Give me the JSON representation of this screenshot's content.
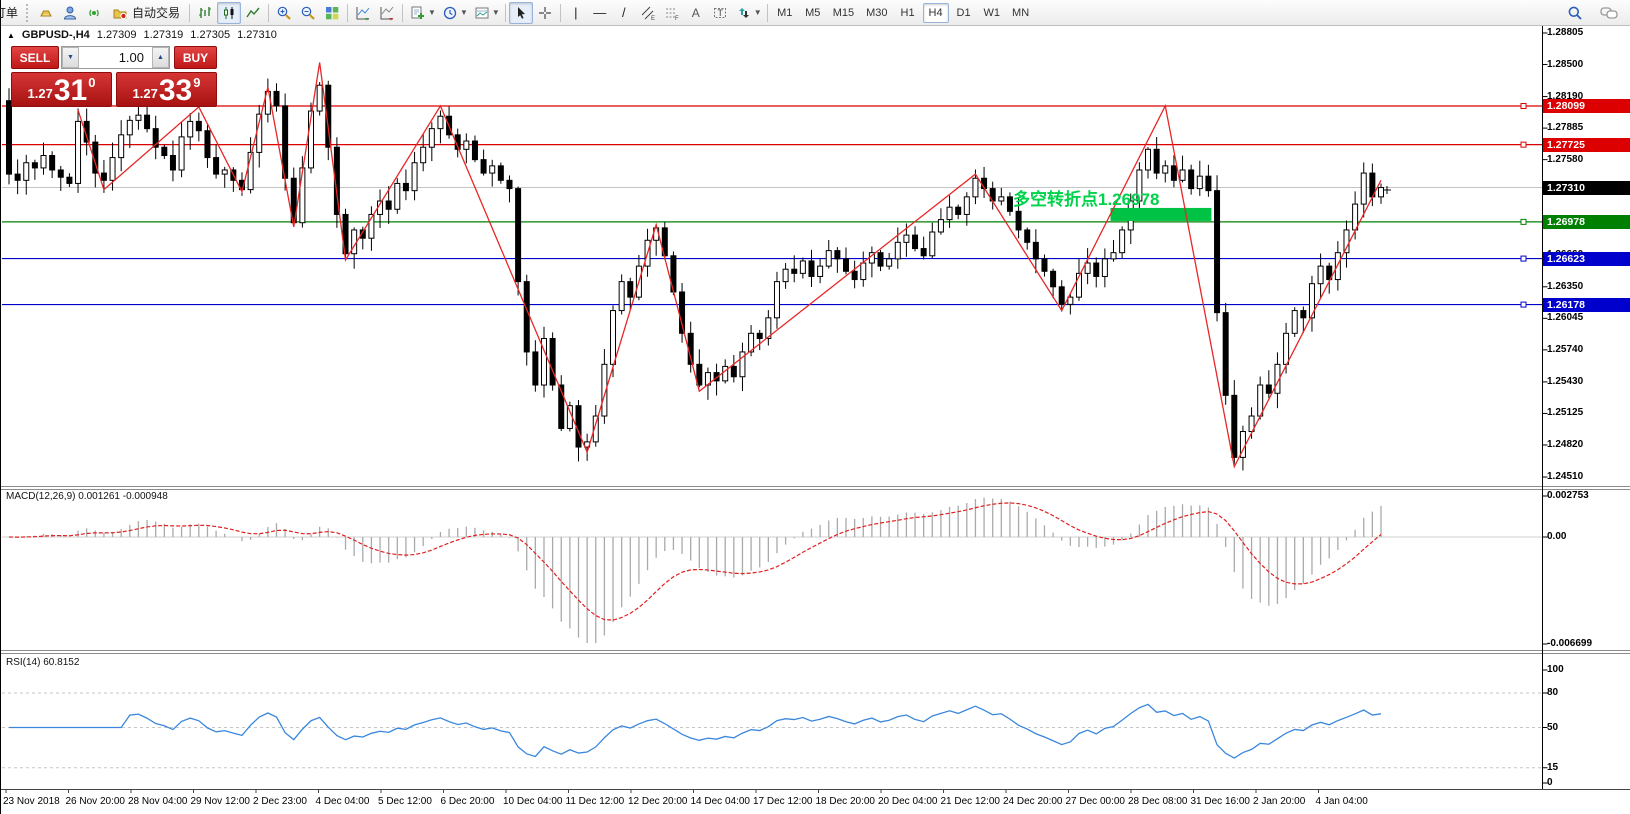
{
  "toolbar": {
    "order_label": "订单",
    "autotrade_label": "自动交易",
    "timeframes": [
      "M1",
      "M5",
      "M15",
      "M30",
      "H1",
      "H4",
      "D1",
      "W1",
      "MN"
    ],
    "active_timeframe": "H4"
  },
  "symbol_header": {
    "symbol": "GBPUSD-,H4",
    "open": "1.27309",
    "high": "1.27319",
    "low": "1.27305",
    "close": "1.27310"
  },
  "trade_panel": {
    "sell_label": "SELL",
    "buy_label": "BUY",
    "volume": "1.00",
    "sell_price_prefix": "1.27",
    "sell_price_big": "31",
    "sell_price_sup": "0",
    "buy_price_prefix": "1.27",
    "buy_price_big": "33",
    "buy_price_sup": "9"
  },
  "annotation": {
    "text": "多空转折点1.26978",
    "color": "#00d24b"
  },
  "highlight_bar": {
    "from_index": 128,
    "to_index": 139,
    "price": 1.2705,
    "color": "#00c244",
    "thickness": 13
  },
  "levels": [
    {
      "price": 1.28099,
      "color": "#dd0000"
    },
    {
      "price": 1.27725,
      "color": "#dd0000"
    },
    {
      "price": 1.26978,
      "color": "#008000"
    },
    {
      "price": 1.26623,
      "color": "#0000cc"
    },
    {
      "price": 1.26178,
      "color": "#0000cc"
    }
  ],
  "current_price": {
    "value": 1.2731,
    "text": "1.27310",
    "line_color": "#c4c4c4"
  },
  "price_axis": {
    "ticks": [
      "1.28805",
      "1.28500",
      "1.28190",
      "1.27885",
      "1.27580",
      "1.27270",
      "1.26965",
      "1.26660",
      "1.26350",
      "1.26045",
      "1.25740",
      "1.25430",
      "1.25125",
      "1.24820",
      "1.24510"
    ],
    "tags": [
      {
        "text": "1.28099",
        "price": 1.28099,
        "color": "#dd0000"
      },
      {
        "text": "1.27725",
        "price": 1.27725,
        "color": "#dd0000"
      },
      {
        "text": "1.27310",
        "price": 1.2731,
        "color": "#000000"
      },
      {
        "text": "1.26978",
        "price": 1.26978,
        "color": "#008000"
      },
      {
        "text": "1.26623",
        "price": 1.26623,
        "color": "#0000cc"
      },
      {
        "text": "1.26178",
        "price": 1.26178,
        "color": "#0000cc"
      }
    ]
  },
  "macd_panel": {
    "label": "MACD(12,26,9)",
    "value_main": "0.001261",
    "value_signal": "-0.000948",
    "axis": [
      "0.002753",
      "0.00",
      "-0.006699"
    ]
  },
  "rsi_panel": {
    "label": "RSI(14)",
    "value": "60.8152",
    "axis": [
      "100",
      "80",
      "50",
      "15",
      "0"
    ],
    "levels": [
      80,
      50,
      15
    ]
  },
  "time_axis": {
    "labels": [
      "23 Nov 2018",
      "26 Nov 20:00",
      "28 Nov 04:00",
      "29 Nov 12:00",
      "2 Dec 23:00",
      "4 Dec 04:00",
      "5 Dec 12:00",
      "6 Dec 20:00",
      "10 Dec 04:00",
      "11 Dec 12:00",
      "12 Dec 20:00",
      "14 Dec 04:00",
      "17 Dec 12:00",
      "18 Dec 20:00",
      "20 Dec 04:00",
      "21 Dec 12:00",
      "24 Dec 20:00",
      "27 Dec 00:00",
      "28 Dec 08:00",
      "31 Dec 16:00",
      "2 Jan 20:00",
      "4 Jan 04:00"
    ]
  },
  "chart_data": {
    "type": "candlestick",
    "title": "GBPUSD- H4",
    "ylim": [
      1.2451,
      1.28805
    ],
    "first_open": 1.2815,
    "closes": [
      1.2744,
      1.2738,
      1.2755,
      1.275,
      1.2762,
      1.2748,
      1.2741,
      1.2735,
      1.2795,
      1.2775,
      1.2745,
      1.2738,
      1.276,
      1.2782,
      1.2796,
      1.2801,
      1.2788,
      1.277,
      1.2762,
      1.2748,
      1.278,
      1.2795,
      1.2786,
      1.276,
      1.2744,
      1.2748,
      1.2738,
      1.2729,
      1.2765,
      1.2802,
      1.2824,
      1.281,
      1.274,
      1.2697,
      1.275,
      1.2805,
      1.283,
      1.277,
      1.2705,
      1.2667,
      1.269,
      1.2682,
      1.2705,
      1.2718,
      1.271,
      1.2735,
      1.2728,
      1.2755,
      1.277,
      1.2788,
      1.28,
      1.2782,
      1.2768,
      1.2776,
      1.2758,
      1.2745,
      1.2752,
      1.2738,
      1.273,
      1.264,
      1.2572,
      1.254,
      1.2585,
      1.254,
      1.2498,
      1.252,
      1.248,
      1.2485,
      1.251,
      1.256,
      1.2612,
      1.264,
      1.2625,
      1.2655,
      1.268,
      1.2692,
      1.2665,
      1.263,
      1.259,
      1.256,
      1.254,
      1.2552,
      1.2544,
      1.2558,
      1.2548,
      1.2572,
      1.259,
      1.2585,
      1.2605,
      1.264,
      1.2652,
      1.2648,
      1.266,
      1.2645,
      1.2655,
      1.267,
      1.2662,
      1.265,
      1.2642,
      1.2658,
      1.2668,
      1.2655,
      1.2662,
      1.2678,
      1.2685,
      1.2672,
      1.2665,
      1.2688,
      1.27,
      1.2712,
      1.2705,
      1.2722,
      1.274,
      1.273,
      1.2718,
      1.2722,
      1.2708,
      1.269,
      1.2678,
      1.2662,
      1.265,
      1.2635,
      1.2618,
      1.2625,
      1.2648,
      1.2658,
      1.2645,
      1.2662,
      1.2668,
      1.269,
      1.2718,
      1.2748,
      1.2768,
      1.2745,
      1.2752,
      1.2738,
      1.2748,
      1.273,
      1.2742,
      1.2728,
      1.261,
      1.253,
      1.247,
      1.2495,
      1.251,
      1.254,
      1.2532,
      1.256,
      1.259,
      1.2612,
      1.2605,
      1.2638,
      1.2655,
      1.2642,
      1.2668,
      1.269,
      1.2715,
      1.2745,
      1.2722,
      1.2731
    ],
    "zigzag": [
      [
        8,
        1.2806
      ],
      [
        11,
        1.2729
      ],
      [
        22,
        1.2809
      ],
      [
        27,
        1.2727
      ],
      [
        30,
        1.2828
      ],
      [
        33,
        1.2693
      ],
      [
        36,
        1.2852
      ],
      [
        39,
        1.2661
      ],
      [
        50,
        1.281
      ],
      [
        67,
        1.2475
      ],
      [
        75,
        1.2695
      ],
      [
        80,
        1.2534
      ],
      [
        112,
        1.2744
      ],
      [
        122,
        1.2612
      ],
      [
        134,
        1.281
      ],
      [
        142,
        1.2461
      ],
      [
        159,
        1.2738
      ]
    ],
    "indicators": {
      "macd": {
        "params": [
          12,
          26,
          9
        ],
        "histogram_color": "#aaaaaa",
        "signal_color": "#e02020"
      },
      "rsi": {
        "period": 14,
        "color": "#3a87dd"
      }
    },
    "zigzag_color": "#e82727"
  }
}
